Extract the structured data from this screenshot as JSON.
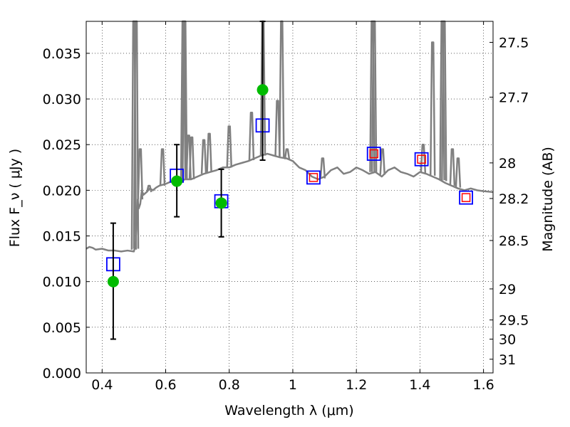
{
  "chart_data": {
    "type": "scatter",
    "title": "",
    "xlabel": "Wavelength  λ (μm)",
    "ylabel": "Flux  F_ν  ( μJy )",
    "ylabel_right": "Magnitude (AB)",
    "xlim": [
      0.35,
      1.63
    ],
    "ylim": [
      0.0,
      0.0385
    ],
    "grid": true,
    "x_ticks": [
      0.4,
      0.6,
      0.8,
      1.0,
      1.2,
      1.4,
      1.6
    ],
    "x_tick_labels": [
      "0.4",
      "0.6",
      "0.8",
      "1",
      "1.2",
      "1.4",
      "1.6"
    ],
    "y_ticks": [
      0.0,
      0.005,
      0.01,
      0.015,
      0.02,
      0.025,
      0.03,
      0.035
    ],
    "y_tick_labels": [
      "0.000",
      "0.005",
      "0.010",
      "0.015",
      "0.020",
      "0.025",
      "0.030",
      "0.035"
    ],
    "right_ticks": [
      {
        "flux": 0.0362,
        "label": "27.5"
      },
      {
        "flux": 0.0302,
        "label": "27.7"
      },
      {
        "flux": 0.023,
        "label": "28"
      },
      {
        "flux": 0.0191,
        "label": "28.2"
      },
      {
        "flux": 0.0145,
        "label": "28.5"
      },
      {
        "flux": 0.0092,
        "label": "29"
      },
      {
        "flux": 0.0058,
        "label": "29.5"
      },
      {
        "flux": 0.0037,
        "label": "30"
      },
      {
        "flux": 0.0015,
        "label": "31"
      }
    ],
    "series": [
      {
        "kind": "model-spectrum",
        "color": "#808080",
        "x": [
          0.35,
          0.36,
          0.37,
          0.38,
          0.4,
          0.42,
          0.44,
          0.46,
          0.48,
          0.5,
          0.505,
          0.51,
          0.512,
          0.515,
          0.52,
          0.525,
          0.53,
          0.54,
          0.55,
          0.56,
          0.57,
          0.58,
          0.6,
          0.62,
          0.64,
          0.66,
          0.68,
          0.7,
          0.72,
          0.74,
          0.76,
          0.78,
          0.8,
          0.82,
          0.84,
          0.86,
          0.88,
          0.9,
          0.92,
          0.94,
          0.96,
          0.98,
          1.0,
          1.02,
          1.04,
          1.06,
          1.08,
          1.1,
          1.12,
          1.14,
          1.16,
          1.18,
          1.2,
          1.22,
          1.24,
          1.26,
          1.28,
          1.3,
          1.32,
          1.34,
          1.36,
          1.38,
          1.4,
          1.42,
          1.44,
          1.46,
          1.48,
          1.5,
          1.52,
          1.54,
          1.56,
          1.58,
          1.6,
          1.63
        ],
        "y": [
          0.0136,
          0.0138,
          0.0137,
          0.0135,
          0.0136,
          0.0134,
          0.0134,
          0.0133,
          0.0134,
          0.0133,
          0.014,
          0.0175,
          0.019,
          0.018,
          0.0185,
          0.02,
          0.0195,
          0.0198,
          0.0202,
          0.02,
          0.0203,
          0.0205,
          0.0207,
          0.021,
          0.0208,
          0.0212,
          0.0212,
          0.0215,
          0.0218,
          0.022,
          0.0222,
          0.0225,
          0.0225,
          0.0228,
          0.023,
          0.0232,
          0.0235,
          0.0238,
          0.024,
          0.0238,
          0.0236,
          0.0235,
          0.0232,
          0.0225,
          0.0222,
          0.0215,
          0.0212,
          0.0215,
          0.0222,
          0.0225,
          0.0218,
          0.022,
          0.0225,
          0.0222,
          0.0218,
          0.022,
          0.0215,
          0.0222,
          0.0225,
          0.022,
          0.0218,
          0.0215,
          0.022,
          0.0218,
          0.0215,
          0.0212,
          0.0208,
          0.0205,
          0.0202,
          0.02,
          0.0202,
          0.02,
          0.0199,
          0.0198
        ]
      },
      {
        "kind": "emission-lines",
        "color": "#808080",
        "lines": [
          {
            "x": 0.5,
            "base": 0.0135,
            "peak": 0.0385
          },
          {
            "x": 0.507,
            "base": 0.0136,
            "peak": 0.0385
          },
          {
            "x": 0.52,
            "base": 0.019,
            "peak": 0.0245
          },
          {
            "x": 0.548,
            "base": 0.0198,
            "peak": 0.0205
          },
          {
            "x": 0.59,
            "base": 0.0205,
            "peak": 0.0245
          },
          {
            "x": 0.655,
            "base": 0.0212,
            "peak": 0.0385
          },
          {
            "x": 0.66,
            "base": 0.0212,
            "peak": 0.0385
          },
          {
            "x": 0.672,
            "base": 0.0212,
            "peak": 0.026
          },
          {
            "x": 0.682,
            "base": 0.0212,
            "peak": 0.0258
          },
          {
            "x": 0.72,
            "base": 0.0218,
            "peak": 0.0255
          },
          {
            "x": 0.737,
            "base": 0.022,
            "peak": 0.0262
          },
          {
            "x": 0.8,
            "base": 0.0225,
            "peak": 0.027
          },
          {
            "x": 0.87,
            "base": 0.0233,
            "peak": 0.0285
          },
          {
            "x": 0.906,
            "base": 0.0238,
            "peak": 0.0385
          },
          {
            "x": 0.952,
            "base": 0.0237,
            "peak": 0.0298
          },
          {
            "x": 0.965,
            "base": 0.0236,
            "peak": 0.0385
          },
          {
            "x": 0.982,
            "base": 0.0234,
            "peak": 0.0245
          },
          {
            "x": 1.094,
            "base": 0.0213,
            "peak": 0.0235
          },
          {
            "x": 1.25,
            "base": 0.022,
            "peak": 0.0385
          },
          {
            "x": 1.256,
            "base": 0.022,
            "peak": 0.0385
          },
          {
            "x": 1.282,
            "base": 0.0217,
            "peak": 0.0245
          },
          {
            "x": 1.41,
            "base": 0.0219,
            "peak": 0.025
          },
          {
            "x": 1.44,
            "base": 0.0216,
            "peak": 0.0362
          },
          {
            "x": 1.47,
            "base": 0.0211,
            "peak": 0.0385
          },
          {
            "x": 1.476,
            "base": 0.021,
            "peak": 0.0385
          },
          {
            "x": 1.502,
            "base": 0.0205,
            "peak": 0.0245
          },
          {
            "x": 1.52,
            "base": 0.0203,
            "peak": 0.0235
          }
        ]
      },
      {
        "kind": "model-photometry",
        "marker": "open-square",
        "color": "#0000ff",
        "x": [
          0.435,
          0.635,
          0.775,
          0.905,
          1.065,
          1.255,
          1.405,
          1.545
        ],
        "y": [
          0.0119,
          0.0216,
          0.0188,
          0.0271,
          0.0214,
          0.024,
          0.0234,
          0.0192
        ]
      },
      {
        "kind": "upper-limit",
        "marker": "small-open-square",
        "color": "#ff0000",
        "x": [
          1.065,
          1.255,
          1.405,
          1.545
        ],
        "y": [
          0.0214,
          0.024,
          0.0234,
          0.0192
        ]
      },
      {
        "kind": "observed",
        "marker": "filled-circle",
        "color": "#00bb00",
        "x": [
          0.435,
          0.635,
          0.775,
          0.905
        ],
        "y": [
          0.01,
          0.021,
          0.0186,
          0.031
        ],
        "yerr_low": [
          0.0037,
          0.0171,
          0.0149,
          0.0233
        ],
        "yerr_high": [
          0.0164,
          0.025,
          0.0223,
          0.0385
        ]
      }
    ]
  }
}
